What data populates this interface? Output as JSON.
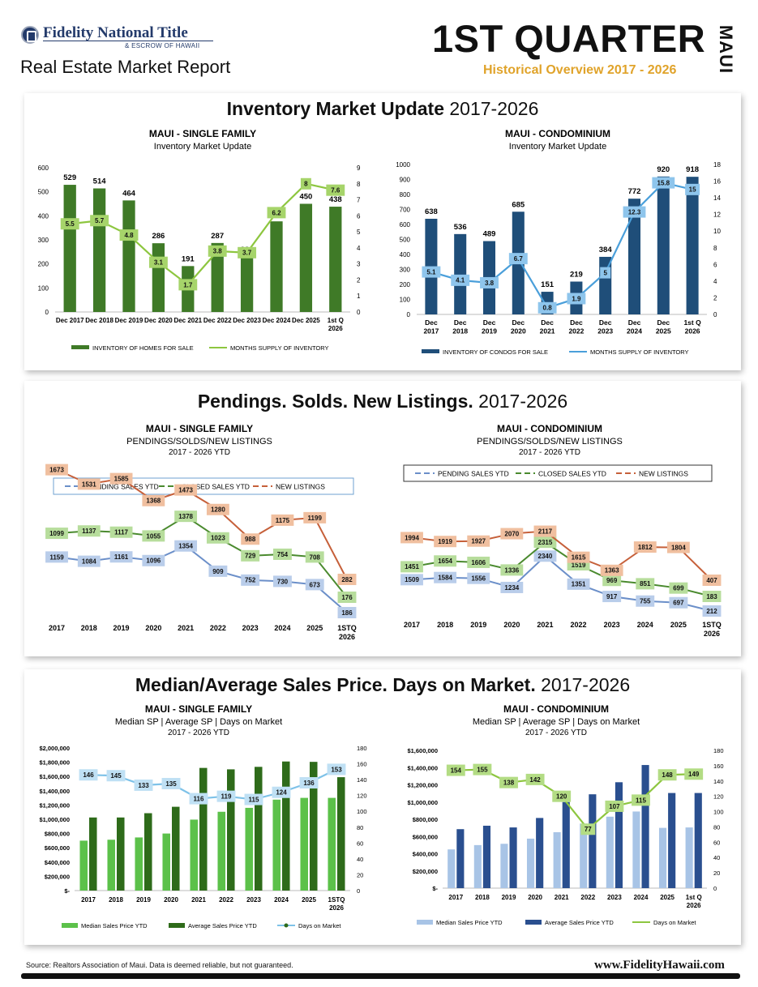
{
  "header": {
    "brand": "Fidelity National Title",
    "brand_sub": "& ESCROW OF HAWAII",
    "report_title": "Real Estate Market Report",
    "quarter": "1ST QUARTER",
    "region": "MAUI",
    "historical_label": "Historical Overview",
    "historical_years": "2017 - 2026"
  },
  "sections": {
    "inventory_bold": "Inventory Market Update",
    "inventory_years": " 2017-2026",
    "pendings_bold": "Pendings.  Solds.  New Listings.",
    "pendings_years": "  2017-2026",
    "price_bold": "Median/Average Sales Price.  Days on Market.",
    "price_years": "  2017-2026"
  },
  "footer": {
    "source": "Source:  Realtors Association of Maui.  Data is deemed reliable, but not guaranteed.",
    "website": "www.FidelityHawaii.com"
  },
  "colors": {
    "sf_bar": "#3f7a27",
    "sf_line": "#8dc63f",
    "condo_bar": "#1f4e79",
    "condo_line": "#4a9fda",
    "pending": "#6b8fc9",
    "closed": "#4a8a2e",
    "new_listing": "#c6603a",
    "median_sf": "#5cc14a",
    "avg_sf": "#2e6b1a",
    "median_condo": "#a8c4e6",
    "avg_condo": "#2a4f8f",
    "dom_sf": "#7ec2e8",
    "dom_condo": "#8dc63f",
    "gold": "#e0a32a"
  },
  "chart_data": [
    {
      "id": "inv_sf",
      "type": "bar",
      "title": "MAUI - SINGLE FAMILY",
      "subtitle": "Inventory Market Update",
      "categories": [
        "Dec 2017",
        "Dec 2018",
        "Dec 2019",
        "Dec 2020",
        "Dec 2021",
        "Dec 2022",
        "Dec 2023",
        "Dec 2024",
        "Dec 2025",
        "1st Q 2026"
      ],
      "series": [
        {
          "name": "INVENTORY OF HOMES FOR SALE",
          "kind": "bar",
          "axis": "left",
          "values": [
            529,
            514,
            464,
            286,
            191,
            287,
            230,
            377,
            450,
            438
          ]
        },
        {
          "name": "MONTHS SUPPLY OF INVENTORY",
          "kind": "line",
          "axis": "right",
          "values": [
            5.5,
            5.7,
            4.8,
            3.1,
            1.7,
            3.8,
            3.7,
            6.2,
            8,
            7.6
          ]
        }
      ],
      "ylim_left": [
        0,
        600
      ],
      "yticks_left": [
        0,
        100,
        200,
        300,
        400,
        500,
        600
      ],
      "ylim_right": [
        0,
        9
      ],
      "yticks_right": [
        0,
        1,
        2,
        3,
        4,
        5,
        6,
        7,
        8,
        9
      ]
    },
    {
      "id": "inv_condo",
      "type": "bar",
      "title": "MAUI - CONDOMINIUM",
      "subtitle": "Inventory Market Update",
      "categories": [
        "Dec 2017",
        "Dec 2018",
        "Dec 2019",
        "Dec 2020",
        "Dec 2021",
        "Dec 2022",
        "Dec 2023",
        "Dec 2024",
        "Dec 2025",
        "1st Q 2026"
      ],
      "series": [
        {
          "name": "INVENTORY OF CONDOS FOR SALE",
          "kind": "bar",
          "axis": "left",
          "values": [
            638,
            536,
            489,
            685,
            151,
            219,
            384,
            772,
            920,
            918
          ]
        },
        {
          "name": "MONTHS SUPPLY OF INVENTORY",
          "kind": "line",
          "axis": "right",
          "values": [
            5.1,
            4.1,
            3.8,
            6.7,
            0.8,
            1.9,
            5,
            12.3,
            15.8,
            15
          ]
        }
      ],
      "ylim_left": [
        0,
        1000
      ],
      "yticks_left": [
        0,
        100,
        200,
        300,
        400,
        500,
        600,
        700,
        800,
        900,
        1000
      ],
      "ylim_right": [
        0,
        18
      ],
      "yticks_right": [
        0,
        2,
        4,
        6,
        8,
        10,
        12,
        14,
        16,
        18
      ]
    },
    {
      "id": "psn_sf",
      "type": "line",
      "title": "MAUI - SINGLE FAMILY",
      "subtitle": "PENDINGS/SOLDS/NEW LISTINGS",
      "subtitle2": "2017 - 2026 YTD",
      "categories": [
        "2017",
        "2018",
        "2019",
        "2020",
        "2021",
        "2022",
        "2023",
        "2024",
        "2025",
        "1STQ 2026"
      ],
      "series": [
        {
          "name": "PENDING SALES YTD",
          "values": [
            1159,
            1084,
            1161,
            1096,
            1354,
            909,
            752,
            730,
            673,
            186
          ]
        },
        {
          "name": "CLOSED SALES YTD",
          "values": [
            1099,
            1137,
            1117,
            1055,
            1378,
            1023,
            729,
            754,
            708,
            176
          ]
        },
        {
          "name": "NEW LISTINGS",
          "values": [
            1673,
            1531,
            1585,
            1368,
            1473,
            1280,
            988,
            1175,
            1199,
            282
          ]
        }
      ]
    },
    {
      "id": "psn_condo",
      "type": "line",
      "title": "MAUI - CONDOMINIUM",
      "subtitle": "PENDINGS/SOLDS/NEW LISTINGS",
      "subtitle2": "2017 - 2026 YTD",
      "categories": [
        "2017",
        "2018",
        "2019",
        "2020",
        "2021",
        "2022",
        "2023",
        "2024",
        "2025",
        "1STQ 2026"
      ],
      "series": [
        {
          "name": "PENDING SALES YTD",
          "values": [
            1509,
            1584,
            1556,
            1234,
            2340,
            1351,
            917,
            755,
            697,
            212
          ]
        },
        {
          "name": "CLOSED SALES YTD",
          "values": [
            1451,
            1654,
            1606,
            1336,
            2315,
            1519,
            969,
            851,
            699,
            183
          ]
        },
        {
          "name": "NEW LISTINGS",
          "values": [
            1994,
            1919,
            1927,
            2070,
            2117,
            1615,
            1363,
            1812,
            1804,
            407
          ]
        }
      ]
    },
    {
      "id": "price_sf",
      "type": "bar",
      "title": "MAUI - SINGLE FAMILY",
      "subtitle": "Median SP  |  Average SP  |  Days on Market",
      "subtitle2": "2017 - 2026 YTD",
      "categories": [
        "2017",
        "2018",
        "2019",
        "2020",
        "2021",
        "2022",
        "2023",
        "2024",
        "2025",
        "1STQ 2026"
      ],
      "series": [
        {
          "name": "Median Sales Price YTD",
          "kind": "bar",
          "axis": "left",
          "values": [
            700000,
            713000,
            745000,
            800000,
            995000,
            1105000,
            1160000,
            1275000,
            1300000,
            1300000
          ]
        },
        {
          "name": "Average Sales Price YTD",
          "kind": "bar",
          "axis": "left",
          "values": [
            1025000,
            1025000,
            1085000,
            1175000,
            1720000,
            1700000,
            1735000,
            1810000,
            1805000,
            1590000
          ]
        },
        {
          "name": "Days on Market",
          "kind": "line",
          "axis": "right",
          "values": [
            146,
            145,
            133,
            135,
            116,
            119,
            115,
            124,
            136,
            153
          ]
        }
      ],
      "ylim_left": [
        0,
        2000000
      ],
      "yticks_left_labels": [
        "$-",
        "$200,000",
        "$400,000",
        "$600,000",
        "$800,000",
        "$1,000,000",
        "$1,200,000",
        "$1,400,000",
        "$1,600,000",
        "$1,800,000",
        "$2,000,000"
      ],
      "ylim_right": [
        0,
        180
      ],
      "yticks_right": [
        0,
        20,
        40,
        60,
        80,
        100,
        120,
        140,
        160,
        180
      ]
    },
    {
      "id": "price_condo",
      "type": "bar",
      "title": "MAUI - CONDOMINIUM",
      "subtitle": "Median SP  |  Average SP  |  Days on Market",
      "subtitle2": "2017 - 2026 YTD",
      "categories": [
        "2017",
        "2018",
        "2019",
        "2020",
        "2021",
        "2022",
        "2023",
        "2024",
        "2025",
        "1st Q 2026"
      ],
      "series": [
        {
          "name": "Median Sales Price YTD",
          "kind": "bar",
          "axis": "left",
          "values": [
            450000,
            500000,
            515000,
            575000,
            650000,
            750000,
            830000,
            890000,
            700000,
            705000
          ]
        },
        {
          "name": "Average Sales Price YTD",
          "kind": "bar",
          "axis": "left",
          "values": [
            685000,
            725000,
            705000,
            815000,
            1000000,
            1090000,
            1230000,
            1430000,
            1105000,
            1105000
          ]
        },
        {
          "name": "Days on Market",
          "kind": "line",
          "axis": "right",
          "values": [
            154,
            155,
            138,
            142,
            120,
            77,
            107,
            115,
            148,
            149
          ]
        }
      ],
      "ylim_left": [
        0,
        1600000
      ],
      "yticks_left_labels": [
        "$-",
        "$200,000",
        "$400,000",
        "$600,000",
        "$800,000",
        "$1,000,000",
        "$1,200,000",
        "$1,400,000",
        "$1,600,000"
      ],
      "ylim_right": [
        0,
        180
      ],
      "yticks_right": [
        0,
        20,
        40,
        60,
        80,
        100,
        120,
        140,
        160,
        180
      ]
    }
  ]
}
